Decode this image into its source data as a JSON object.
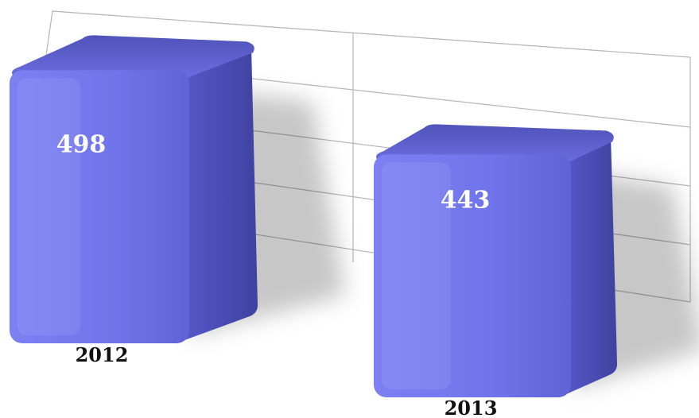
{
  "chart_data": {
    "type": "bar",
    "categories": [
      "2012",
      "2013"
    ],
    "series": [
      {
        "values": [
          498,
          443
        ]
      }
    ],
    "title": "",
    "xlabel": "",
    "ylabel": "",
    "grid": true,
    "colors": {
      "bar_front": "#6f73e6",
      "bar_side": "#4b4eb6",
      "bar_top": "#5f62d3",
      "value_label": "#ffffff",
      "category_label": "#111111",
      "grid": "#b5b5b5"
    }
  }
}
